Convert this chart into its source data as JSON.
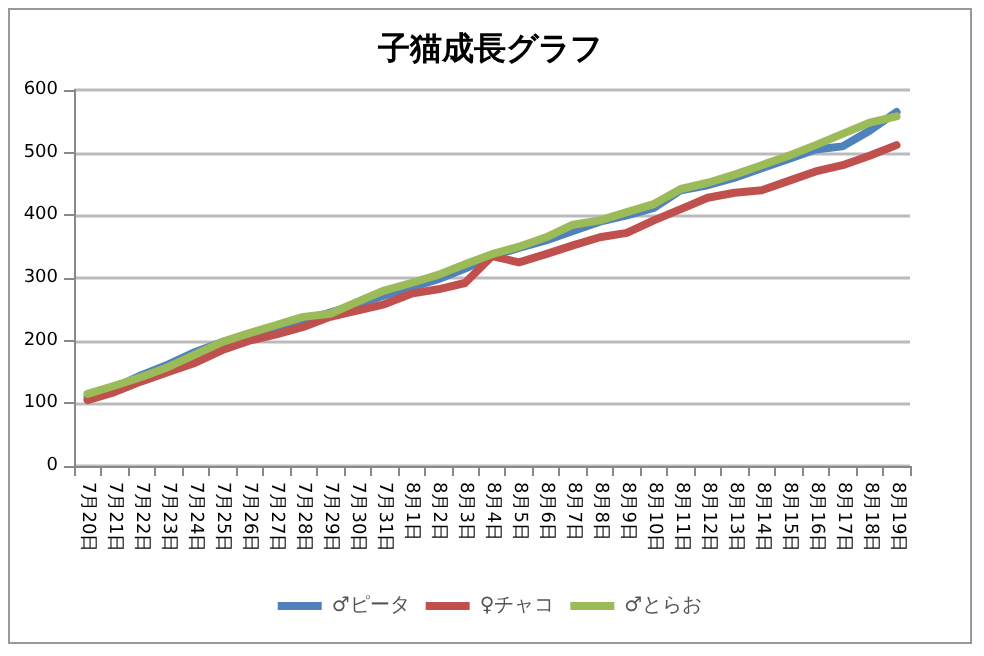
{
  "chart_data": {
    "type": "line",
    "title": "子猫成長グラフ",
    "categories": [
      "7月20日",
      "7月21日",
      "7月22日",
      "7月23日",
      "7月24日",
      "7月25日",
      "7月26日",
      "7月27日",
      "7月28日",
      "7月29日",
      "7月30日",
      "7月31日",
      "8月1日",
      "8月2日",
      "8月3日",
      "8月4日",
      "8月5日",
      "8月6日",
      "8月7日",
      "8月8日",
      "8月9日",
      "8月10日",
      "8月11日",
      "8月12日",
      "8月13日",
      "8月14日",
      "8月15日",
      "8月16日",
      "8月17日",
      "8月18日",
      "8月19日"
    ],
    "series": [
      {
        "name": "♂ピータ",
        "color": "#4f81bd",
        "values": [
          110,
          125,
          145,
          162,
          182,
          198,
          208,
          220,
          232,
          245,
          258,
          272,
          285,
          298,
          315,
          335,
          348,
          360,
          375,
          390,
          400,
          412,
          440,
          448,
          460,
          475,
          490,
          505,
          510,
          535,
          565
        ]
      },
      {
        "name": "♀チャコ",
        "color": "#c0504d",
        "values": [
          105,
          118,
          135,
          150,
          165,
          185,
          200,
          210,
          222,
          238,
          248,
          258,
          275,
          282,
          292,
          335,
          325,
          338,
          352,
          365,
          372,
          392,
          410,
          428,
          436,
          440,
          455,
          470,
          480,
          495,
          512
        ]
      },
      {
        "name": "♂とらお",
        "color": "#9bbb59",
        "values": [
          115,
          128,
          142,
          158,
          178,
          198,
          212,
          225,
          238,
          243,
          262,
          280,
          292,
          305,
          322,
          338,
          350,
          365,
          385,
          392,
          405,
          418,
          442,
          452,
          465,
          480,
          495,
          512,
          530,
          548,
          558
        ]
      }
    ],
    "ylim": [
      0,
      600
    ],
    "yticks": [
      0,
      100,
      200,
      300,
      400,
      500,
      600
    ],
    "grid": "y",
    "legend": "bottom",
    "marker": "none",
    "line_style": "solid"
  }
}
